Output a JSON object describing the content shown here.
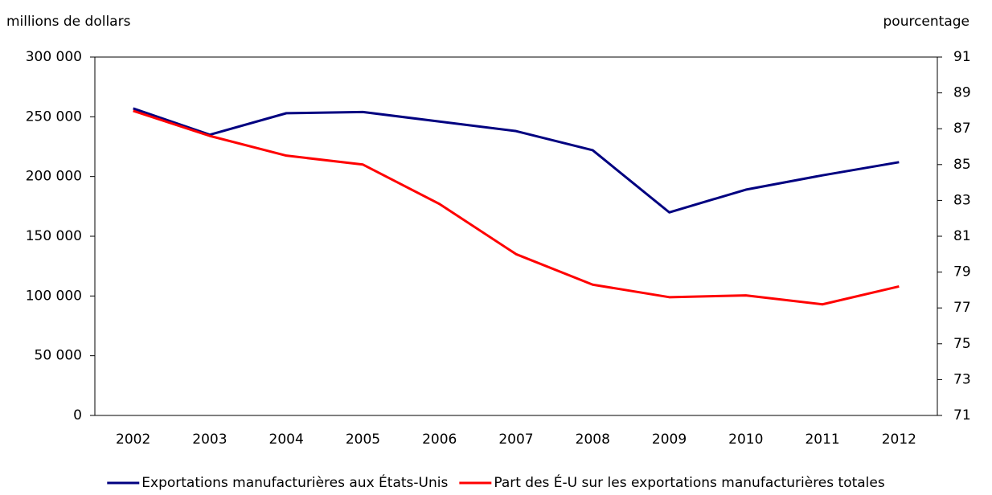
{
  "chart_data": {
    "type": "line",
    "y_label": "millions de dollars",
    "y2_label": "pourcentage",
    "categories": [
      "2002",
      "2003",
      "2004",
      "2005",
      "2006",
      "2007",
      "2008",
      "2009",
      "2010",
      "2011",
      "2012"
    ],
    "series": [
      {
        "name": "Exportations manufacturières aux États-Unis",
        "color": "#000080",
        "values": [
          257000,
          235000,
          253000,
          254000,
          246000,
          238000,
          222000,
          170000,
          189000,
          201000,
          212000
        ]
      },
      {
        "name": "Part des É-U sur les exportations manufacturières totales",
        "color": "#ff0000",
        "axis": "y2",
        "values": [
          88.0,
          86.6,
          85.5,
          85.0,
          82.8,
          80.0,
          78.3,
          77.6,
          77.7,
          77.2,
          78.2
        ]
      }
    ],
    "ylim": [
      0,
      300000
    ],
    "yticks": [
      0,
      {
        "value": 50000,
        "label": "50 000"
      },
      {
        "value": 100000,
        "label": "100 000"
      },
      {
        "value": 150000,
        "label": "150 000"
      },
      {
        "value": 200000,
        "label": "200 000"
      },
      {
        "value": 250000,
        "label": "250 000"
      },
      {
        "value": 300000,
        "label": "300 000"
      }
    ],
    "y2lim": [
      71,
      91
    ],
    "y2ticks": [
      71,
      73,
      75,
      77,
      79,
      81,
      83,
      85,
      87,
      89,
      91
    ],
    "grid": false,
    "legend": "bottom"
  }
}
